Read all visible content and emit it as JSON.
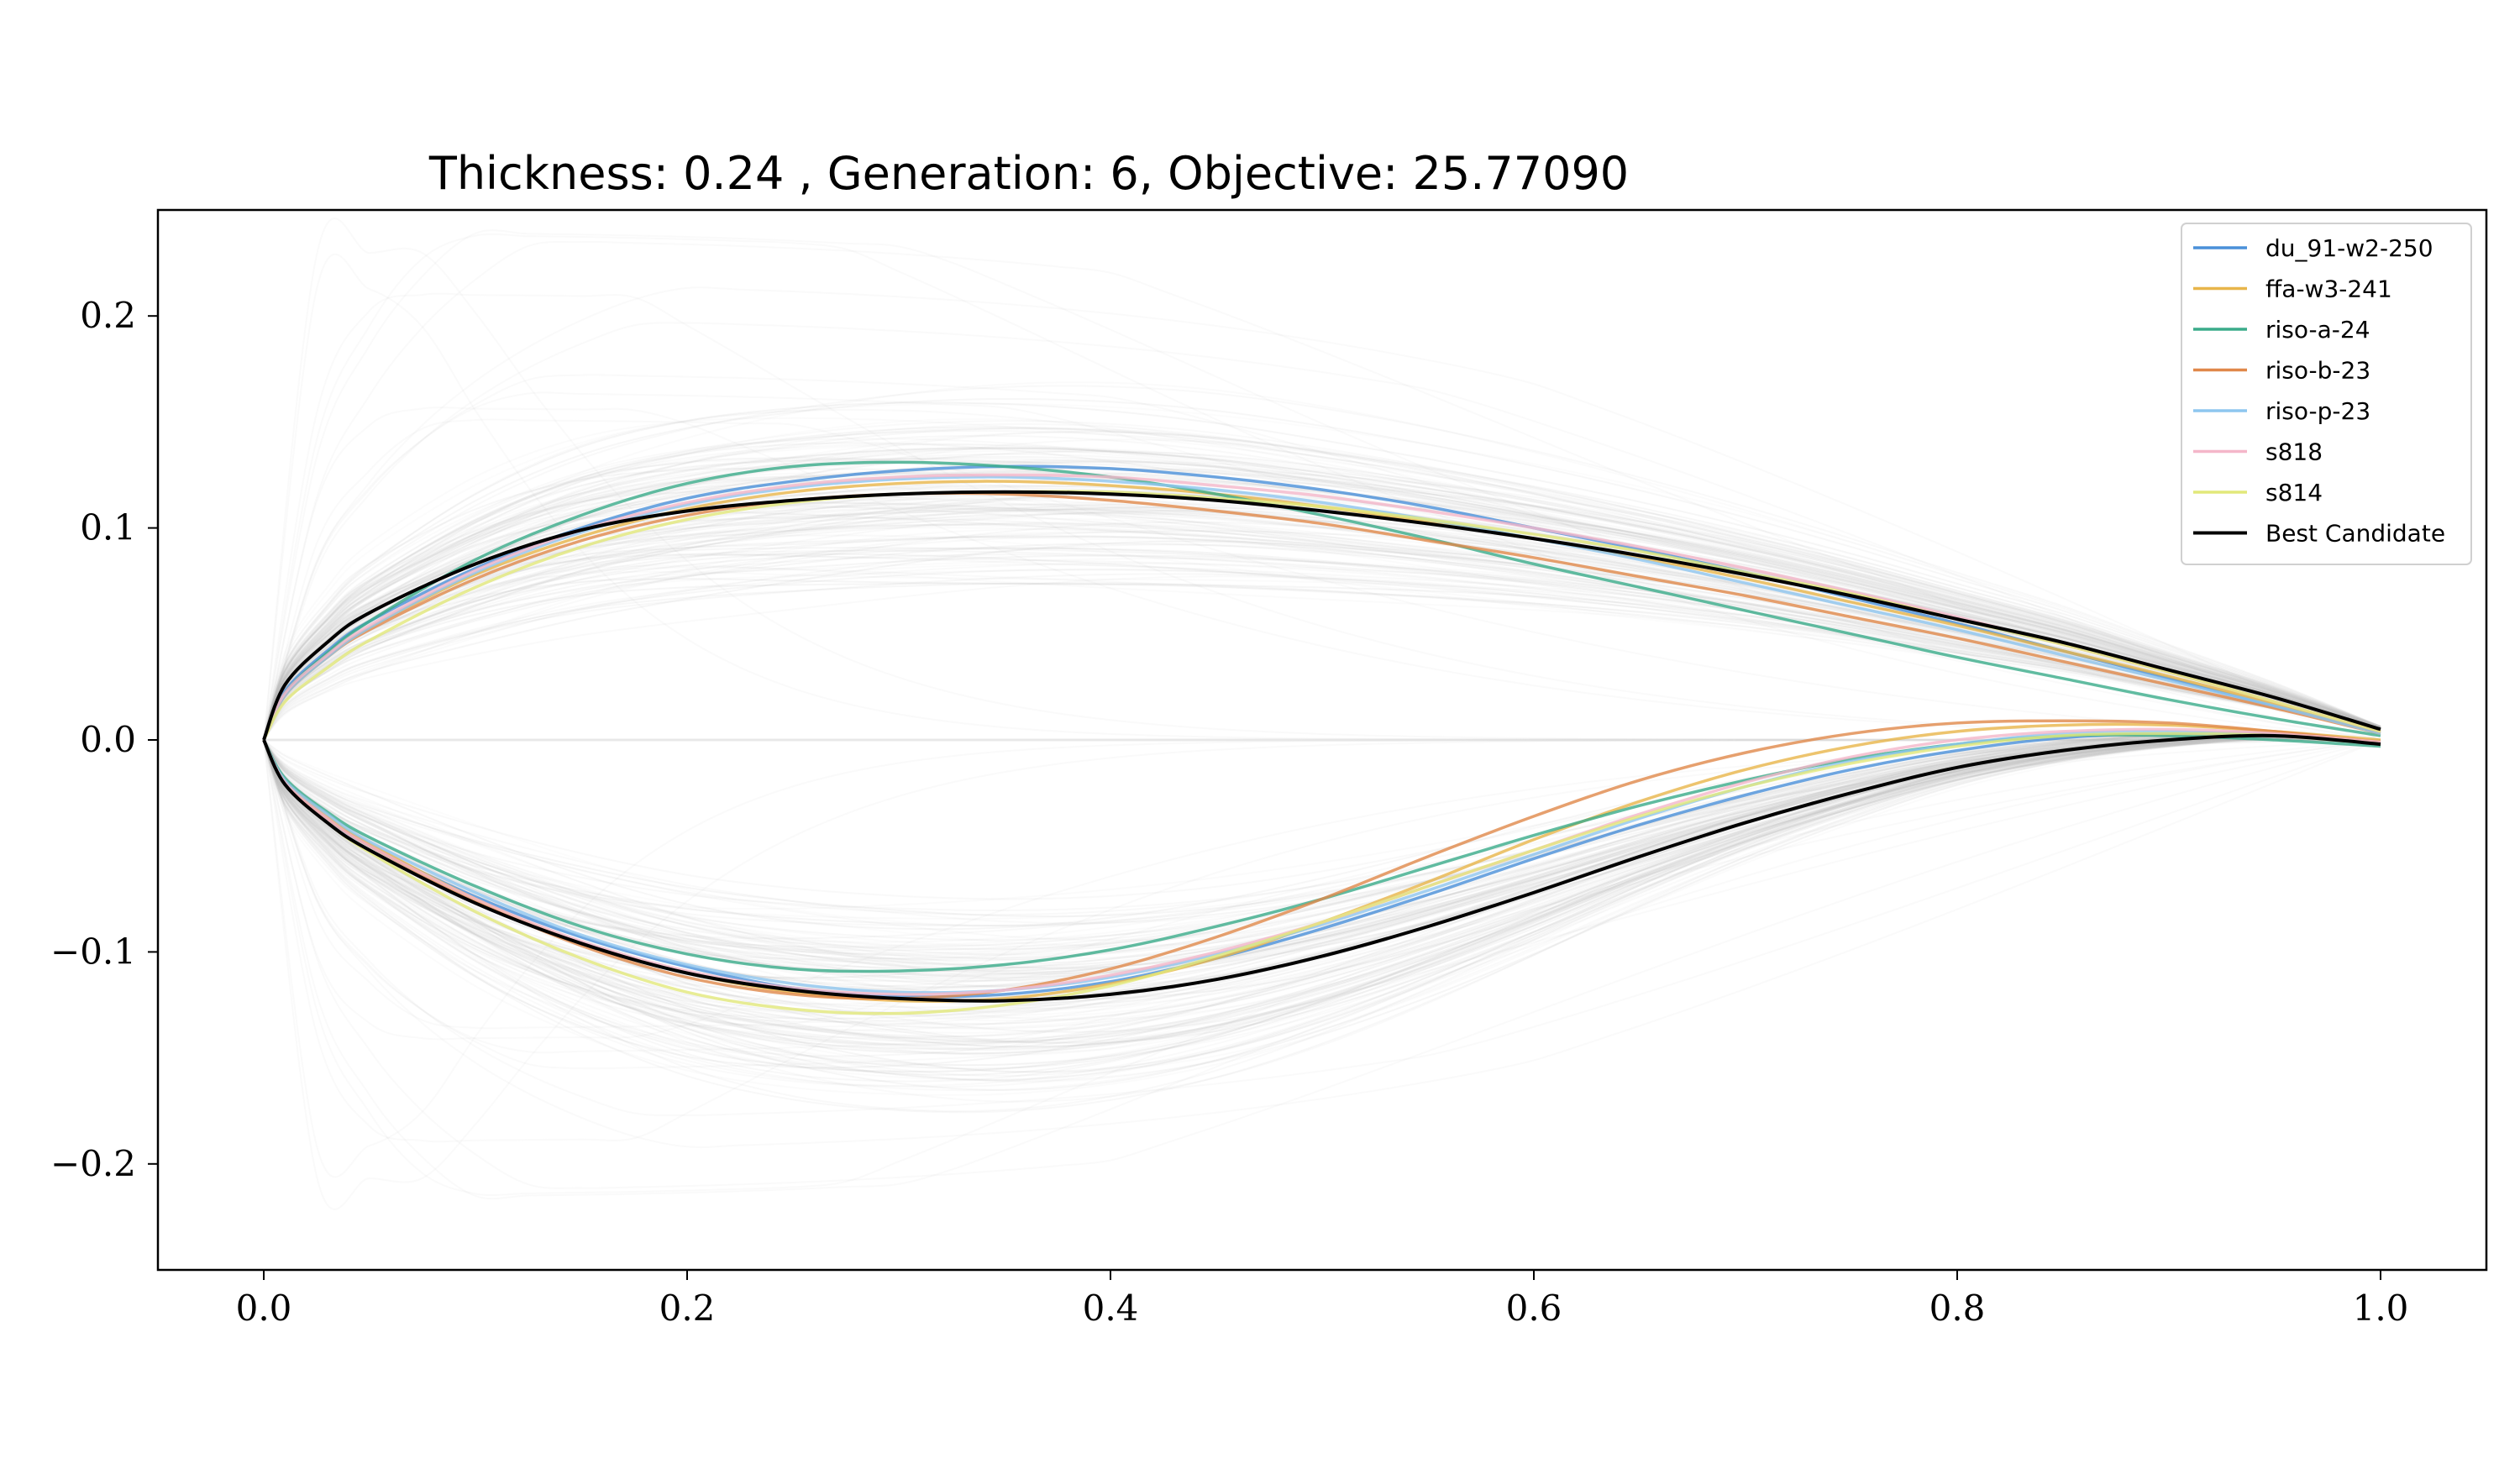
{
  "chart_data": {
    "type": "line",
    "title": "Thickness: 0.24 , Generation: 6, Objective: 25.77090",
    "xlabel": "",
    "ylabel": "",
    "xlim": [
      -0.05,
      1.05
    ],
    "ylim": [
      -0.25,
      0.25
    ],
    "x_ticks": [
      0.0,
      0.2,
      0.4,
      0.6,
      0.8,
      1.0
    ],
    "x_tick_labels": [
      "0.0",
      "0.2",
      "0.4",
      "0.6",
      "0.8",
      "1.0"
    ],
    "y_ticks": [
      0.2,
      0.1,
      0.0,
      -0.1,
      -0.2
    ],
    "y_tick_labels": [
      "0.2",
      "0.1",
      "0.0",
      "−0.1",
      "−0.2"
    ],
    "grid": false,
    "legend_position": "top-right",
    "x": [
      0.0,
      0.01,
      0.03,
      0.05,
      0.1,
      0.15,
      0.2,
      0.25,
      0.3,
      0.35,
      0.4,
      0.45,
      0.5,
      0.55,
      0.6,
      0.65,
      0.7,
      0.75,
      0.8,
      0.85,
      0.9,
      0.95,
      1.0
    ],
    "series": [
      {
        "name": "du_91-w2-250",
        "color": "#4a90d9",
        "upper": [
          0.0,
          0.023,
          0.042,
          0.056,
          0.081,
          0.1,
          0.114,
          0.122,
          0.127,
          0.129,
          0.128,
          0.124,
          0.118,
          0.11,
          0.1,
          0.09,
          0.079,
          0.067,
          0.055,
          0.042,
          0.029,
          0.016,
          0.004
        ],
        "lower": [
          0.0,
          -0.02,
          -0.037,
          -0.05,
          -0.074,
          -0.093,
          -0.107,
          -0.117,
          -0.121,
          -0.12,
          -0.114,
          -0.103,
          -0.089,
          -0.073,
          -0.056,
          -0.04,
          -0.026,
          -0.014,
          -0.005,
          0.001,
          0.003,
          0.002,
          -0.001
        ]
      },
      {
        "name": "ffa-w3-241",
        "color": "#e8b54a",
        "upper": [
          0.0,
          0.021,
          0.039,
          0.053,
          0.078,
          0.096,
          0.109,
          0.117,
          0.121,
          0.122,
          0.12,
          0.116,
          0.11,
          0.103,
          0.095,
          0.086,
          0.076,
          0.065,
          0.054,
          0.042,
          0.03,
          0.017,
          0.004
        ],
        "lower": [
          0.0,
          -0.019,
          -0.036,
          -0.049,
          -0.075,
          -0.096,
          -0.11,
          -0.119,
          -0.123,
          -0.122,
          -0.115,
          -0.103,
          -0.086,
          -0.067,
          -0.047,
          -0.029,
          -0.014,
          -0.003,
          0.004,
          0.007,
          0.007,
          0.004,
          0.0
        ]
      },
      {
        "name": "riso-a-24",
        "color": "#3aab8a",
        "upper": [
          0.0,
          0.022,
          0.041,
          0.056,
          0.085,
          0.106,
          0.121,
          0.129,
          0.131,
          0.129,
          0.124,
          0.116,
          0.106,
          0.095,
          0.083,
          0.072,
          0.061,
          0.05,
          0.039,
          0.029,
          0.019,
          0.01,
          0.002
        ],
        "lower": [
          0.0,
          -0.018,
          -0.034,
          -0.046,
          -0.069,
          -0.088,
          -0.101,
          -0.108,
          -0.109,
          -0.106,
          -0.099,
          -0.088,
          -0.075,
          -0.06,
          -0.045,
          -0.031,
          -0.019,
          -0.009,
          -0.002,
          0.002,
          0.002,
          0.0,
          -0.003
        ]
      },
      {
        "name": "riso-b-23",
        "color": "#e0884a",
        "upper": [
          0.0,
          0.021,
          0.039,
          0.052,
          0.076,
          0.094,
          0.106,
          0.113,
          0.116,
          0.116,
          0.113,
          0.108,
          0.102,
          0.094,
          0.086,
          0.077,
          0.068,
          0.058,
          0.048,
          0.037,
          0.026,
          0.015,
          0.003
        ],
        "lower": [
          0.0,
          -0.02,
          -0.037,
          -0.05,
          -0.076,
          -0.097,
          -0.112,
          -0.12,
          -0.122,
          -0.118,
          -0.108,
          -0.093,
          -0.075,
          -0.055,
          -0.036,
          -0.019,
          -0.006,
          0.003,
          0.008,
          0.009,
          0.008,
          0.004,
          -0.001
        ]
      },
      {
        "name": "riso-p-23",
        "color": "#8ec6ef",
        "upper": [
          0.0,
          0.021,
          0.039,
          0.053,
          0.079,
          0.098,
          0.111,
          0.119,
          0.123,
          0.124,
          0.122,
          0.118,
          0.112,
          0.104,
          0.095,
          0.085,
          0.074,
          0.063,
          0.052,
          0.04,
          0.028,
          0.016,
          0.003
        ],
        "lower": [
          0.0,
          -0.019,
          -0.035,
          -0.048,
          -0.072,
          -0.092,
          -0.106,
          -0.115,
          -0.119,
          -0.118,
          -0.112,
          -0.101,
          -0.087,
          -0.071,
          -0.054,
          -0.037,
          -0.022,
          -0.01,
          -0.002,
          0.003,
          0.004,
          0.002,
          -0.002
        ]
      },
      {
        "name": "s818",
        "color": "#f4b6c9",
        "upper": [
          0.0,
          0.022,
          0.04,
          0.054,
          0.08,
          0.099,
          0.112,
          0.12,
          0.124,
          0.125,
          0.124,
          0.12,
          0.115,
          0.108,
          0.1,
          0.091,
          0.081,
          0.07,
          0.058,
          0.045,
          0.032,
          0.018,
          0.004
        ],
        "lower": [
          0.0,
          -0.02,
          -0.037,
          -0.05,
          -0.075,
          -0.095,
          -0.109,
          -0.117,
          -0.12,
          -0.118,
          -0.111,
          -0.1,
          -0.086,
          -0.069,
          -0.052,
          -0.035,
          -0.02,
          -0.008,
          0.0,
          0.004,
          0.005,
          0.003,
          -0.001
        ]
      },
      {
        "name": "s814",
        "color": "#e2e87a",
        "upper": [
          0.0,
          0.018,
          0.034,
          0.047,
          0.072,
          0.091,
          0.104,
          0.112,
          0.116,
          0.117,
          0.117,
          0.114,
          0.11,
          0.104,
          0.097,
          0.089,
          0.079,
          0.069,
          0.057,
          0.045,
          0.032,
          0.018,
          0.004
        ],
        "lower": [
          0.0,
          -0.021,
          -0.039,
          -0.053,
          -0.081,
          -0.103,
          -0.119,
          -0.127,
          -0.129,
          -0.125,
          -0.116,
          -0.102,
          -0.086,
          -0.069,
          -0.052,
          -0.036,
          -0.022,
          -0.011,
          -0.003,
          0.002,
          0.003,
          0.002,
          -0.002
        ]
      },
      {
        "name": "Best Candidate",
        "color": "#000000",
        "upper": [
          0.0,
          0.026,
          0.046,
          0.06,
          0.083,
          0.099,
          0.108,
          0.113,
          0.116,
          0.117,
          0.116,
          0.113,
          0.108,
          0.102,
          0.095,
          0.087,
          0.078,
          0.068,
          0.057,
          0.046,
          0.033,
          0.02,
          0.005
        ],
        "lower": [
          0.0,
          -0.021,
          -0.039,
          -0.052,
          -0.077,
          -0.096,
          -0.11,
          -0.118,
          -0.122,
          -0.123,
          -0.12,
          -0.113,
          -0.102,
          -0.088,
          -0.072,
          -0.055,
          -0.039,
          -0.025,
          -0.013,
          -0.005,
          0.0,
          0.002,
          -0.002
        ]
      }
    ],
    "background_population_color": "#bdbdbd"
  }
}
